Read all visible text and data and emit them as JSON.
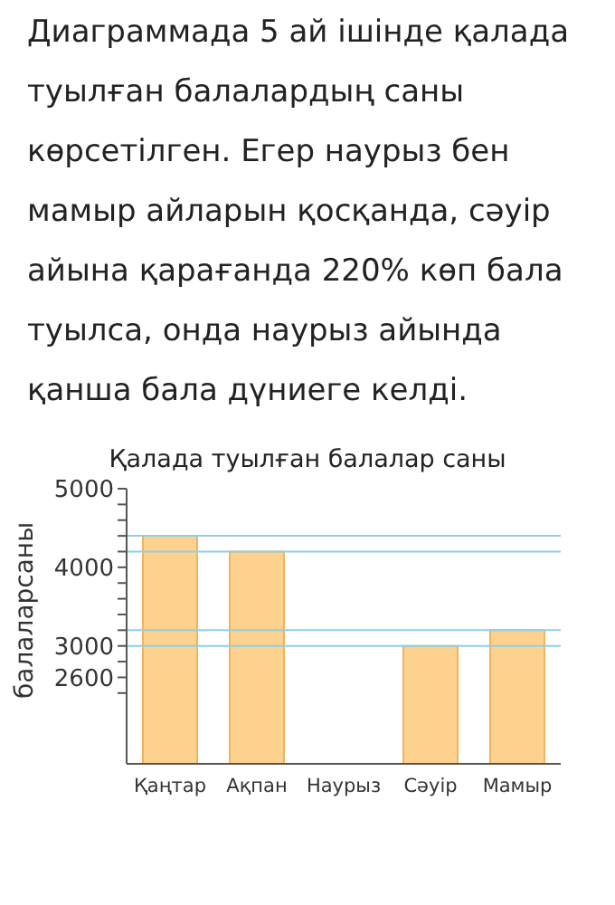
{
  "chart_data": {
    "type": "bar",
    "title": "Қалада туылған балалар саны",
    "ylabel": "балаларсаны",
    "annotations": [
      "Диаграммада 5 ай ішінде қалада туылған балалардың саны көрсетілген. Егер наурыз бен мамыр айларын қосқанда, сәуір айына қарағанда 220% көп бала туылса, онда наурыз айында қанша бала дүниеге келді."
    ],
    "categories": [
      "Қаңтар",
      "Ақпан",
      "Наурыз",
      "Сәуір",
      "Мамыр"
    ],
    "values": [
      4400,
      4200,
      null,
      3000,
      3200
    ],
    "color": "#fdd28e",
    "ylim": [
      1500,
      5000
    ],
    "yticks": [
      {
        "value": 2400,
        "label": null
      },
      2600,
      {
        "value": 2800,
        "label": null
      },
      3000,
      {
        "value": 3200,
        "label": null
      },
      {
        "value": 3400,
        "label": null
      },
      {
        "value": 3600,
        "label": null
      },
      {
        "value": 3800,
        "label": null
      },
      4000,
      {
        "value": 4200,
        "label": null
      },
      {
        "value": 4400,
        "label": null
      },
      {
        "value": 4600,
        "label": null
      },
      {
        "value": 4800,
        "label": null
      },
      5000
    ],
    "ref_lines": [
      {
        "axis": "y",
        "value": 4400,
        "color": "#8fd0e8"
      },
      {
        "axis": "y",
        "value": 4200,
        "color": "#8fd0e8"
      },
      {
        "axis": "y",
        "value": 3200,
        "color": "#8fd0e8"
      },
      {
        "axis": "y",
        "value": 3000,
        "color": "#8fd0e8"
      }
    ],
    "grid": false,
    "legend": false
  }
}
